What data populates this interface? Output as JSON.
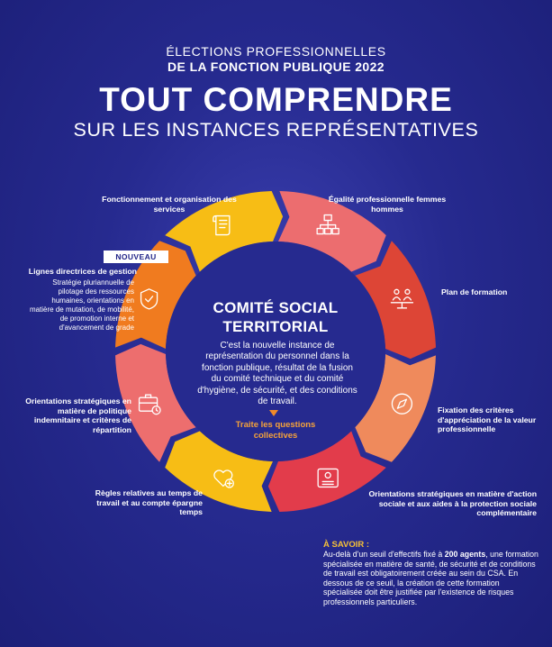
{
  "header": {
    "line1": "ÉLECTIONS PROFESSIONNELLES",
    "line2": "DE LA FONCTION PUBLIQUE 2022",
    "title": "TOUT COMPRENDRE",
    "subtitle": "SUR LES INSTANCES REPRÉSENTATIVES"
  },
  "badge": "NOUVEAU",
  "center": {
    "title_line1": "COMITÉ SOCIAL",
    "title_line2": "TERRITORIAL",
    "description": "C'est la nouvelle instance de représentation du personnel dans la fonction publique, résultat de la fusion du comité technique et du comité d'hygiène, de sécurité, et des conditions de travail.",
    "tag": "Traite les questions collectives"
  },
  "segments": [
    {
      "label": "Fonctionnement et organisation des services",
      "icon": "org-chart-icon",
      "color": "#ec6d6f"
    },
    {
      "label": "Égalité professionnelle femmes hommes",
      "icon": "equality-scale-icon",
      "color": "#dd4536"
    },
    {
      "label": "Plan de formation",
      "icon": "compass-icon",
      "color": "#ef8a5c"
    },
    {
      "label": "Fixation des critères d'appréciation de la valeur professionnelle",
      "icon": "evaluation-card-icon",
      "color": "#e23c4b"
    },
    {
      "label": "Orientations stratégiques en matière d'action sociale et aux aides à la protection sociale complémentaire",
      "icon": "heart-plus-icon",
      "color": "#f7bd15"
    },
    {
      "label": "Règles relatives au temps de travail et au compte épargne temps",
      "icon": "briefcase-clock-icon",
      "color": "#ed6e6e"
    },
    {
      "label": "Orientations stratégiques en matière de politique indemnitaire et critères de répartition",
      "icon": "shield-check-icon",
      "color": "#f07b1f"
    },
    {
      "label": "Lignes directrices de gestion",
      "sublabel": "Stratégie pluriannuelle de pilotage des ressources humaines, orientations en matière de mutation, de mobilité, de promotion interne et d'avancement de grade",
      "icon": "scroll-document-icon",
      "color": "#f7bd15"
    }
  ],
  "savoir": {
    "title": "À SAVOIR :",
    "text_before": "Au-delà d'un seuil d'effectifs fixé à ",
    "highlight": "200 agents",
    "text_after": ", une formation spécialisée en matière de santé, de sécurité et de conditions de travail est obligatoirement créée au sein du CSA. En dessous de ce seuil, la création de cette formation spécialisée doit être justifiée par l'existence de risques professionnels particuliers."
  }
}
